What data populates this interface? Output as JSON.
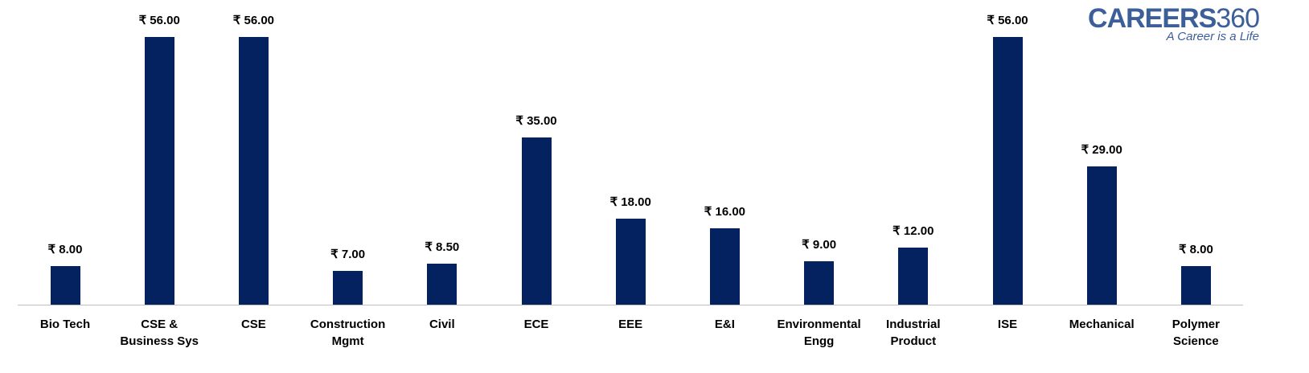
{
  "logo": {
    "brand": "CAREERS",
    "num": "360",
    "tagline": "A Career is a Life"
  },
  "chart_data": {
    "type": "bar",
    "title": "",
    "xlabel": "",
    "ylabel": "",
    "ylim": [
      0,
      56
    ],
    "grid": false,
    "currency": "₹",
    "categories": [
      "Bio Tech",
      "CSE & Business Sys",
      "CSE",
      "Construction Mgmt",
      "Civil",
      "ECE",
      "EEE",
      "E&I",
      "Environmental Engg",
      "Industrial Product",
      "ISE",
      "Mechanical",
      "Polymer Science"
    ],
    "values": [
      8,
      56,
      56,
      7,
      8.5,
      35,
      18,
      16,
      9,
      12,
      56,
      29,
      8
    ],
    "labels": [
      "₹ 8.00",
      "₹ 56.00",
      "₹ 56.00",
      "₹ 7.00",
      "₹ 8.50",
      "₹ 35.00",
      "₹ 18.00",
      "₹ 16.00",
      "₹ 9.00",
      "₹ 12.00",
      "₹ 56.00",
      "₹ 29.00",
      "₹ 8.00"
    ],
    "color": "#042160"
  }
}
